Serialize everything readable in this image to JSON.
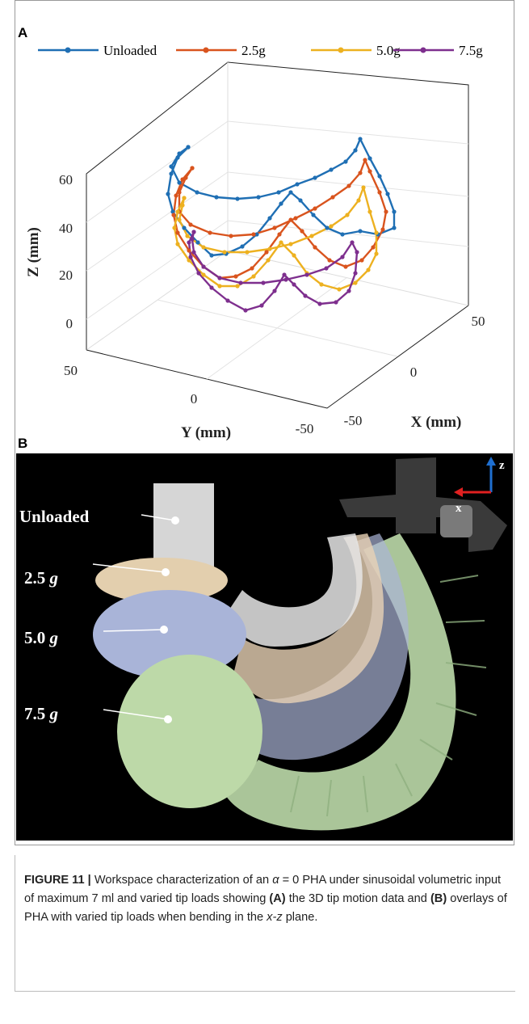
{
  "panel_a": {
    "letter": "A",
    "legend": [
      {
        "name": "Unloaded",
        "color": "#1f6fb4"
      },
      {
        "name": "2.5g",
        "color": "#d9541e"
      },
      {
        "name": "5.0g",
        "color": "#edb120"
      },
      {
        "name": "7.5g",
        "color": "#7e2f8e"
      }
    ],
    "z_label": "Z (mm)",
    "y_label": "Y (mm)",
    "x_label": "X (mm)",
    "z_ticks": [
      "60",
      "40",
      "20",
      "0"
    ],
    "y_ticks": [
      "50",
      "0",
      "-50"
    ],
    "x_ticks": [
      "-50",
      "0",
      "50"
    ]
  },
  "panel_b": {
    "letter": "B",
    "labels": [
      {
        "text": "Unloaded"
      },
      {
        "text": "2.5",
        "unit": "g"
      },
      {
        "text": "5.0",
        "unit": "g"
      },
      {
        "text": "7.5",
        "unit": "g"
      }
    ],
    "axis_z": "z",
    "axis_x": "x"
  },
  "caption": [
    {
      "text": "FIGURE 11 |",
      "style": "bold"
    },
    {
      "text": " Workspace characterization of an ",
      "style": "normal"
    },
    {
      "text": "α",
      "style": "italic"
    },
    {
      "text": " = 0 PHA under sinusoidal volumetric input of maximum 7 ml and varied tip loads showing ",
      "style": "normal"
    },
    {
      "text": "(A)",
      "style": "bold"
    },
    {
      "text": " the 3D tip motion data and ",
      "style": "normal"
    },
    {
      "text": "(B)",
      "style": "bold"
    },
    {
      "text": " overlays of PHA with varied tip loads when bending in the ",
      "style": "normal"
    },
    {
      "text": "x-z",
      "style": "italic"
    },
    {
      "text": " plane.",
      "style": "normal"
    }
  ]
}
